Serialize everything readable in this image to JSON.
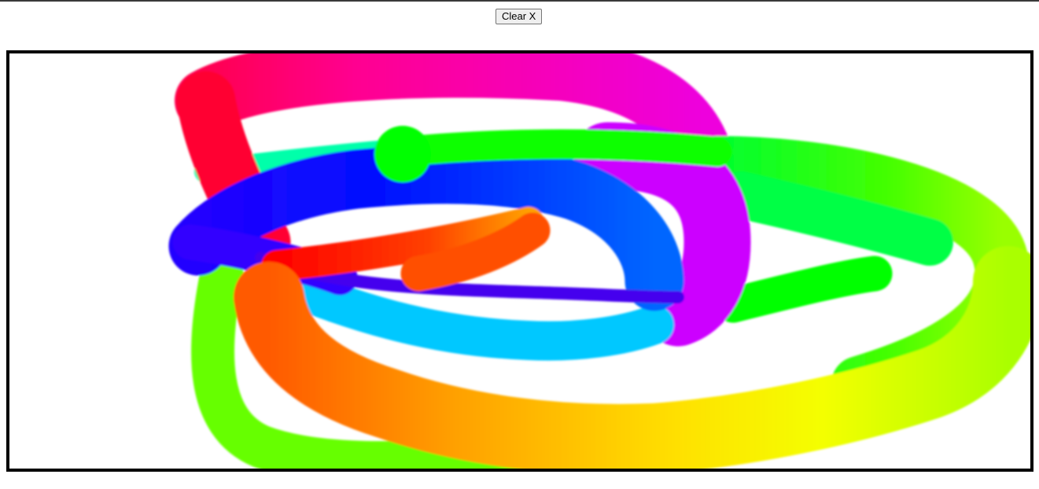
{
  "toolbar": {
    "clear_label": "Clear X"
  },
  "canvas": {
    "description_colors": [
      "#ff0000",
      "#ff8000",
      "#ffff00",
      "#66ff00",
      "#00ff44",
      "#00ffaa",
      "#00ccff",
      "#0033ff",
      "#3300ff",
      "#cc00ff",
      "#ff00aa"
    ]
  }
}
